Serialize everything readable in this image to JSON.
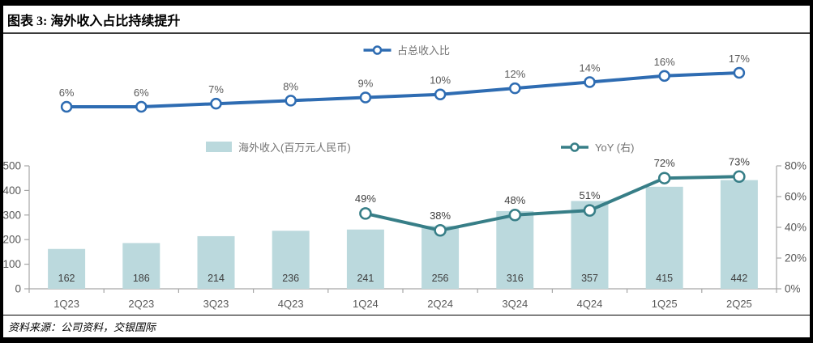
{
  "header": {
    "title": "图表 3: 海外收入占比持续提升"
  },
  "footer": {
    "source": "资料来源：公司资料，交银国际"
  },
  "colors": {
    "share_line": "#2e6cb2",
    "bar_fill": "#bbd9dd",
    "yoy_line": "#377e87",
    "axis": "#a6a6a6",
    "axis_label": "#595959",
    "data_label": "#404040",
    "legend_text": "#737373",
    "frame": "#000000"
  },
  "chart_data": [
    {
      "type": "line",
      "title": "",
      "legend_position": "top-center",
      "axes": "hidden",
      "categories": [
        "1Q23",
        "2Q23",
        "3Q23",
        "4Q23",
        "1Q24",
        "2Q24",
        "3Q24",
        "4Q24",
        "1Q25",
        "2Q25"
      ],
      "series": [
        {
          "name": "占总收入比",
          "color": "#2e6cb2",
          "values": [
            6,
            6,
            7,
            8,
            9,
            10,
            12,
            14,
            16,
            17
          ],
          "labels": [
            "6%",
            "6%",
            "7%",
            "8%",
            "9%",
            "10%",
            "12%",
            "14%",
            "16%",
            "17%"
          ]
        }
      ]
    },
    {
      "type": "bar",
      "title": "",
      "legend_position": "top",
      "grid": false,
      "categories": [
        "1Q23",
        "2Q23",
        "3Q23",
        "4Q23",
        "1Q24",
        "2Q24",
        "3Q24",
        "4Q24",
        "1Q25",
        "2Q25"
      ],
      "series": [
        {
          "name": "海外收入(百万元人民币)",
          "type": "bar",
          "axis": "left",
          "color": "#bbd9dd",
          "values": [
            162,
            186,
            214,
            236,
            241,
            256,
            316,
            357,
            415,
            442
          ],
          "labels": [
            "162",
            "186",
            "214",
            "236",
            "241",
            "256",
            "316",
            "357",
            "415",
            "442"
          ]
        },
        {
          "name": "YoY (右)",
          "type": "line",
          "axis": "right",
          "color": "#377e87",
          "values": [
            null,
            null,
            null,
            null,
            49,
            38,
            48,
            51,
            72,
            73
          ],
          "labels": [
            null,
            null,
            null,
            null,
            "49%",
            "38%",
            "48%",
            "51%",
            "72%",
            "73%"
          ]
        }
      ],
      "left_axis": {
        "min": 0,
        "max": 500,
        "tick_labels": [
          "0",
          "100",
          "200",
          "300",
          "400",
          "500"
        ]
      },
      "right_axis": {
        "min": 0,
        "max": 80,
        "tick_labels": [
          "0%",
          "20%",
          "40%",
          "60%",
          "80%"
        ]
      }
    }
  ]
}
